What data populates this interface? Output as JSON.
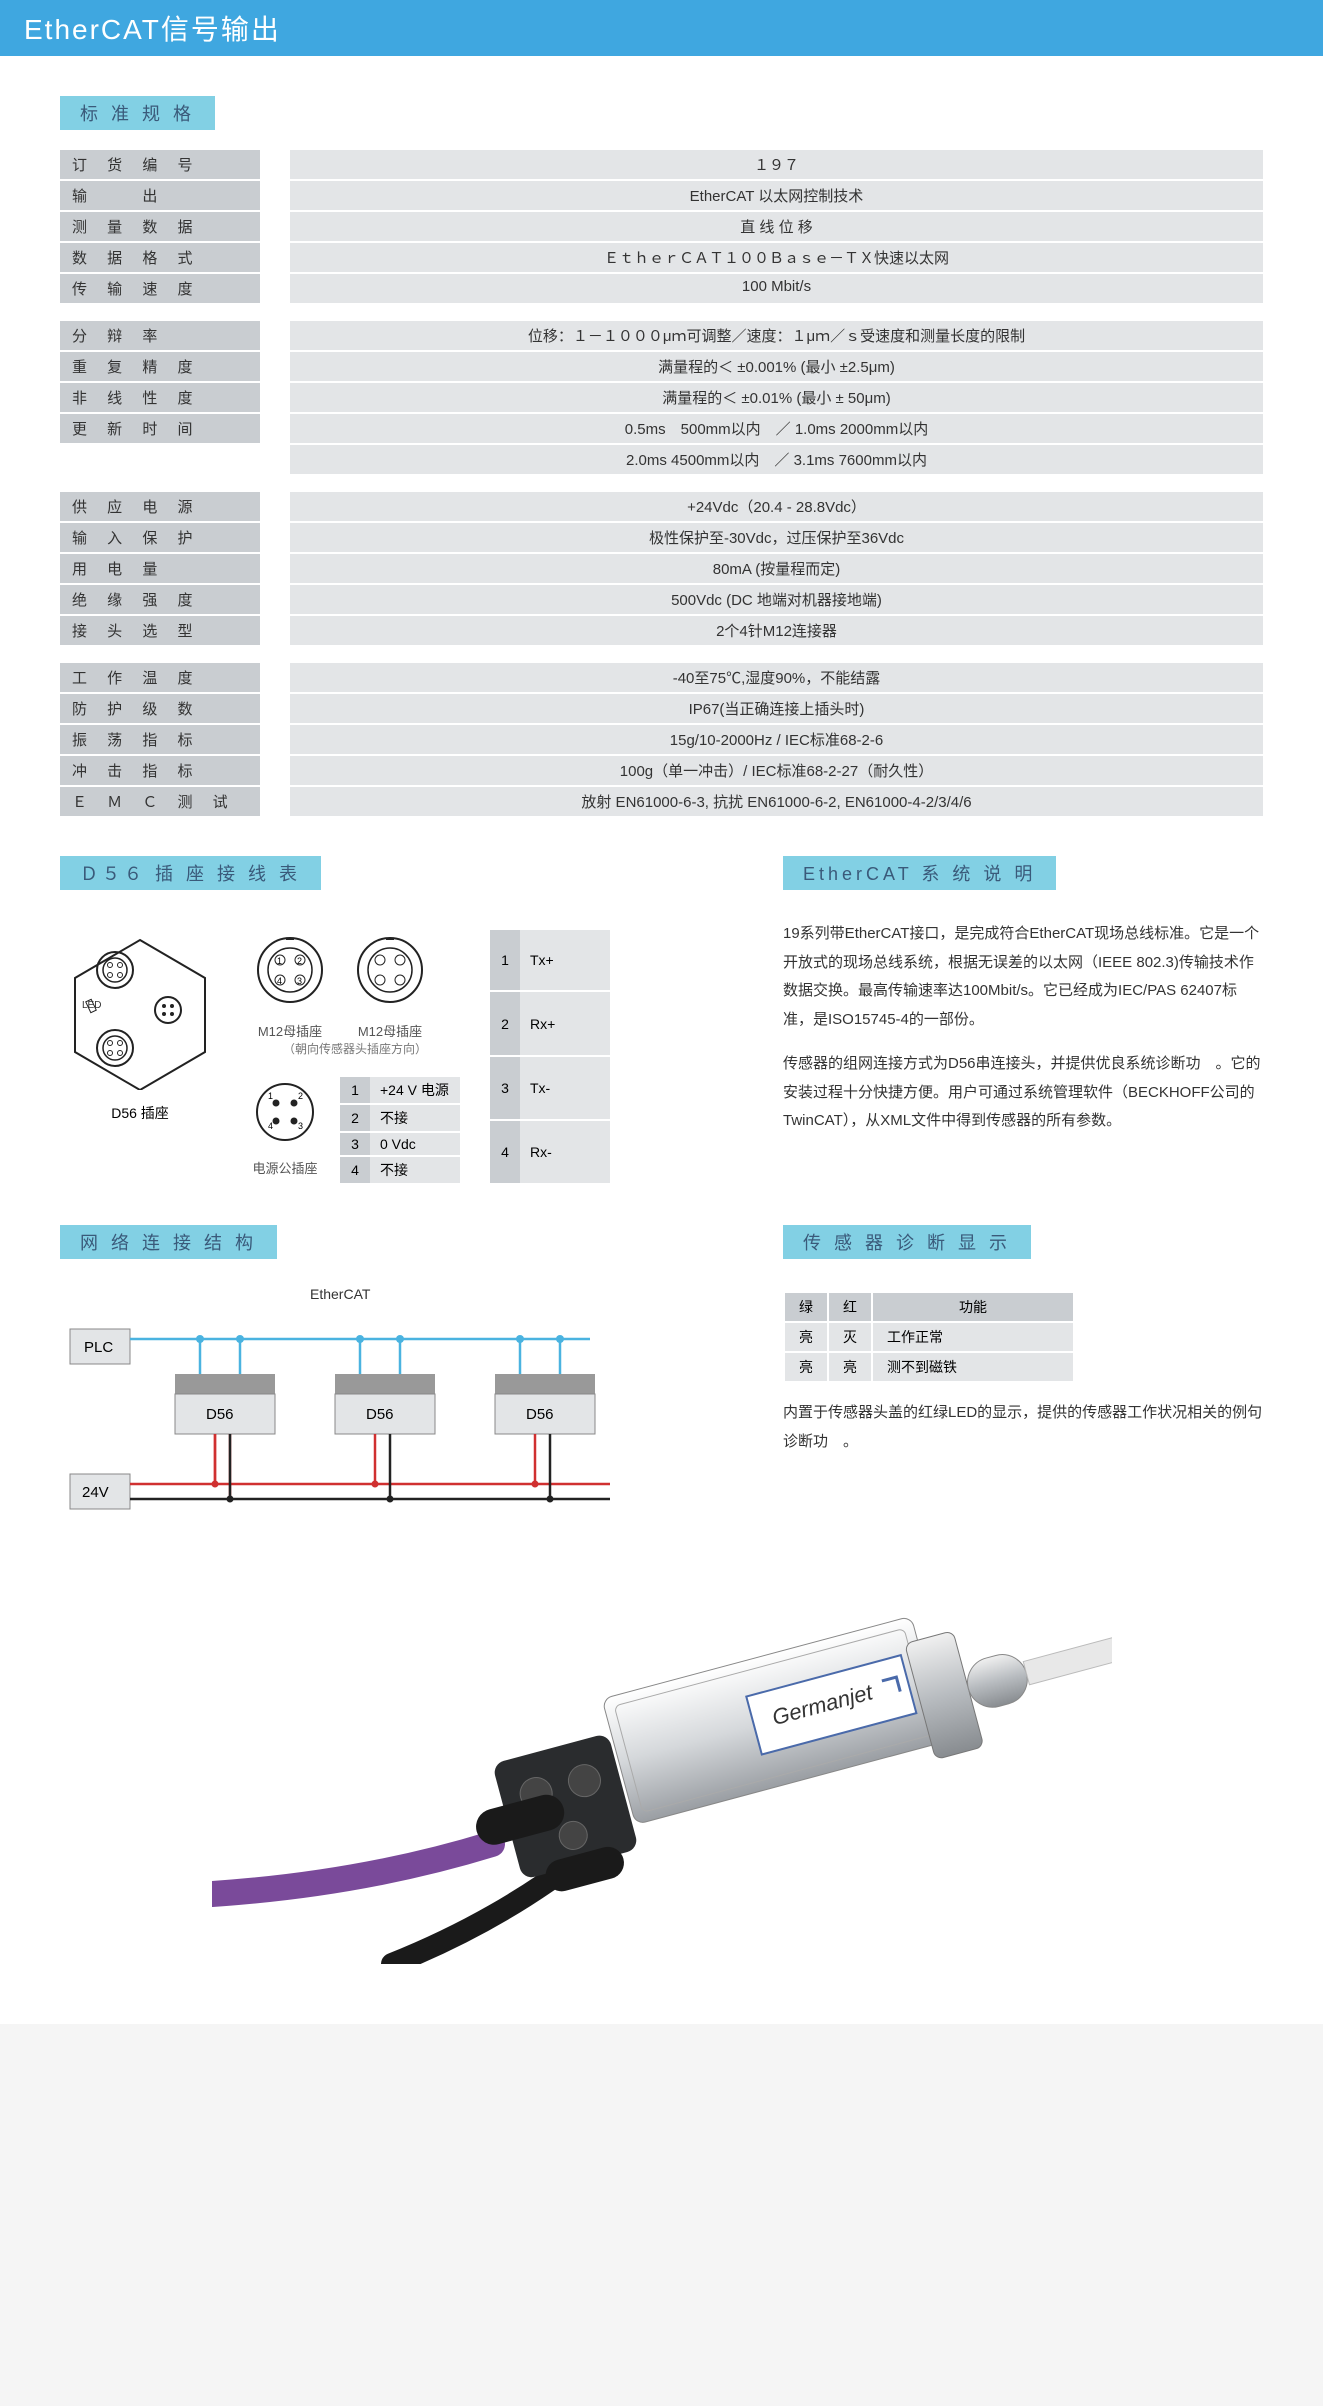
{
  "header": "EtherCAT信号输出",
  "spec_title": "标 准 规 格",
  "specs": {
    "g1": [
      {
        "label": "订 货 编 号",
        "value": "１９７"
      },
      {
        "label": "输 　 出",
        "value": "EtherCAT 以太网控制技术"
      },
      {
        "label": "测 量 数 据",
        "value": "直 线 位 移"
      },
      {
        "label": "数 据 格 式",
        "value": "ＥｔｈｅｒＣＡＴ１００Ｂａｓｅ－ＴＸ快速以太网"
      },
      {
        "label": "传 输 速 度",
        "value": "100 Mbit/s"
      }
    ],
    "g2": [
      {
        "label": "分 辩 率",
        "value": "位移：１－１０００μｍ可调整／速度：１μｍ／ｓ受速度和测量长度的限制"
      },
      {
        "label": "重 复 精 度",
        "value": "满量程的＜ ±0.001% (最小 ±2.5μm)"
      },
      {
        "label": "非 线 性 度",
        "value": "满量程的＜ ±0.01% (最小 ± 50μm)"
      },
      {
        "label": "更 新 时 间",
        "value": "0.5ms　500mm以内　／ 1.0ms 2000mm以内"
      },
      {
        "label": "",
        "value": "2.0ms 4500mm以内　／ 3.1ms 7600mm以内"
      }
    ],
    "g3": [
      {
        "label": "供 应 电 源",
        "value": "+24Vdc（20.4 - 28.8Vdc）"
      },
      {
        "label": "输 入 保 护",
        "value": "极性保护至-30Vdc，过压保护至36Vdc"
      },
      {
        "label": "用 电 量",
        "value": "80mA (按量程而定)"
      },
      {
        "label": "绝 缘 强 度",
        "value": "500Vdc (DC 地端对机器接地端)"
      },
      {
        "label": "接 头 选 型",
        "value": "2个4针M12连接器"
      }
    ],
    "g4": [
      {
        "label": "工 作 温 度",
        "value": "-40至75℃,湿度90%，不能结露"
      },
      {
        "label": "防 护 级 数",
        "value": "IP67(当正确连接上插头时)"
      },
      {
        "label": "振 荡 指 标",
        "value": "15g/10-2000Hz / IEC标准68-2-6"
      },
      {
        "label": "冲 击 指 标",
        "value": "100g（单一冲击）/ IEC标准68-2-27（耐久性）"
      },
      {
        "label": "Ｅ Ｍ Ｃ 测 试",
        "value": "放射 EN61000-6-3, 抗扰 EN61000-6-2, EN61000-4-2/3/4/6"
      }
    ]
  },
  "d56": {
    "title": "Ｄ５６ 插 座 接 线 表",
    "socket_label": "D56 插座",
    "m12_female": "M12母插座",
    "m12_orientation": "（朝向传感器头插座方向）",
    "power_male": "电源公插座",
    "signal_pins": [
      {
        "pin": "1",
        "sig": "Tx+"
      },
      {
        "pin": "2",
        "sig": "Rx+"
      },
      {
        "pin": "3",
        "sig": "Tx-"
      },
      {
        "pin": "4",
        "sig": "Rx-"
      }
    ],
    "power_pins": [
      {
        "pin": "1",
        "sig": "+24 V 电源"
      },
      {
        "pin": "2",
        "sig": "不接"
      },
      {
        "pin": "3",
        "sig": "0 Vdc"
      },
      {
        "pin": "4",
        "sig": "不接"
      }
    ]
  },
  "ethercat_desc": {
    "title": "EtherCAT 系 统 说 明",
    "p1": "19系列带EtherCAT接口，是完成符合EtherCAT现场总线标准。它是一个开放式的现场总线系统，根据无误差的以太网（IEEE 802.3)传输技术作数据交换。最高传输速率达100Mbit/s。它已经成为IEC/PAS 62407标准，是ISO15745-4的一部份。",
    "p2": "传感器的组网连接方式为D56串连接头，并提供优良系统诊断功　。它的安装过程十分快捷方便。用户可通过系统管理软件（BECKHOFF公司的TwinCAT），从XML文件中得到传感器的所有参数。"
  },
  "network": {
    "title": "网 络 连 接 结 构",
    "ethercat_label": "EtherCAT",
    "plc": "PLC",
    "d56_label": "D56",
    "v24": "24V"
  },
  "diag": {
    "title": "传 感 器 诊 断 显 示",
    "headers": {
      "green": "绿",
      "red": "红",
      "func": "功能"
    },
    "rows": [
      {
        "g": "亮",
        "r": "灭",
        "f": "工作正常"
      },
      {
        "g": "亮",
        "r": "亮",
        "f": "测不到磁铁"
      }
    ],
    "note": "内置于传感器头盖的红绿LED的显示，提供的传感器工作状况相关的例句诊断功　。"
  },
  "colors": {
    "header_bg": "#3fa7e0",
    "section_bg": "#82d0e4",
    "label_bg": "#c9cdd1",
    "value_bg": "#e3e5e7",
    "wire_blue": "#4ab3e0",
    "wire_red": "#d03030",
    "wire_black": "#222"
  }
}
